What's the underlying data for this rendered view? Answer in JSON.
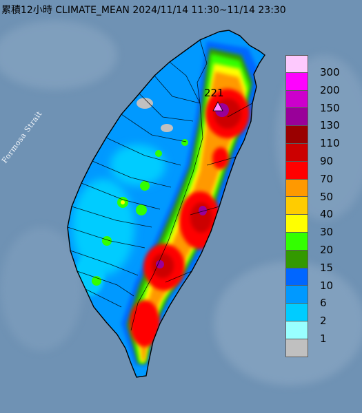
{
  "title": "累積12小時 CLIMATE_MEAN 2024/11/14 11:30~11/14 23:30",
  "strait_label": "Formosa Strait",
  "max_rainfall_label": "221",
  "colors": {
    "sea": "#6f92b4",
    "land_outline": "#000000"
  },
  "legend": {
    "items": [
      {
        "label": "300",
        "color": "#fdc9fd"
      },
      {
        "label": "200",
        "color": "#fe03fe"
      },
      {
        "label": "150",
        "color": "#cc00cc"
      },
      {
        "label": "130",
        "color": "#990099"
      },
      {
        "label": "110",
        "color": "#9a0000"
      },
      {
        "label": "90",
        "color": "#cc0000"
      },
      {
        "label": "70",
        "color": "#ff0000"
      },
      {
        "label": "50",
        "color": "#ff9900"
      },
      {
        "label": "40",
        "color": "#ffcc00"
      },
      {
        "label": "30",
        "color": "#ffff00"
      },
      {
        "label": "20",
        "color": "#33ff00"
      },
      {
        "label": "15",
        "color": "#339900"
      },
      {
        "label": "10",
        "color": "#0066ff"
      },
      {
        "label": "6",
        "color": "#0099ff"
      },
      {
        "label": "2",
        "color": "#00ccff"
      },
      {
        "label": "1",
        "color": "#99ffff"
      },
      {
        "label": "",
        "color": "#c0c0c0"
      }
    ]
  }
}
